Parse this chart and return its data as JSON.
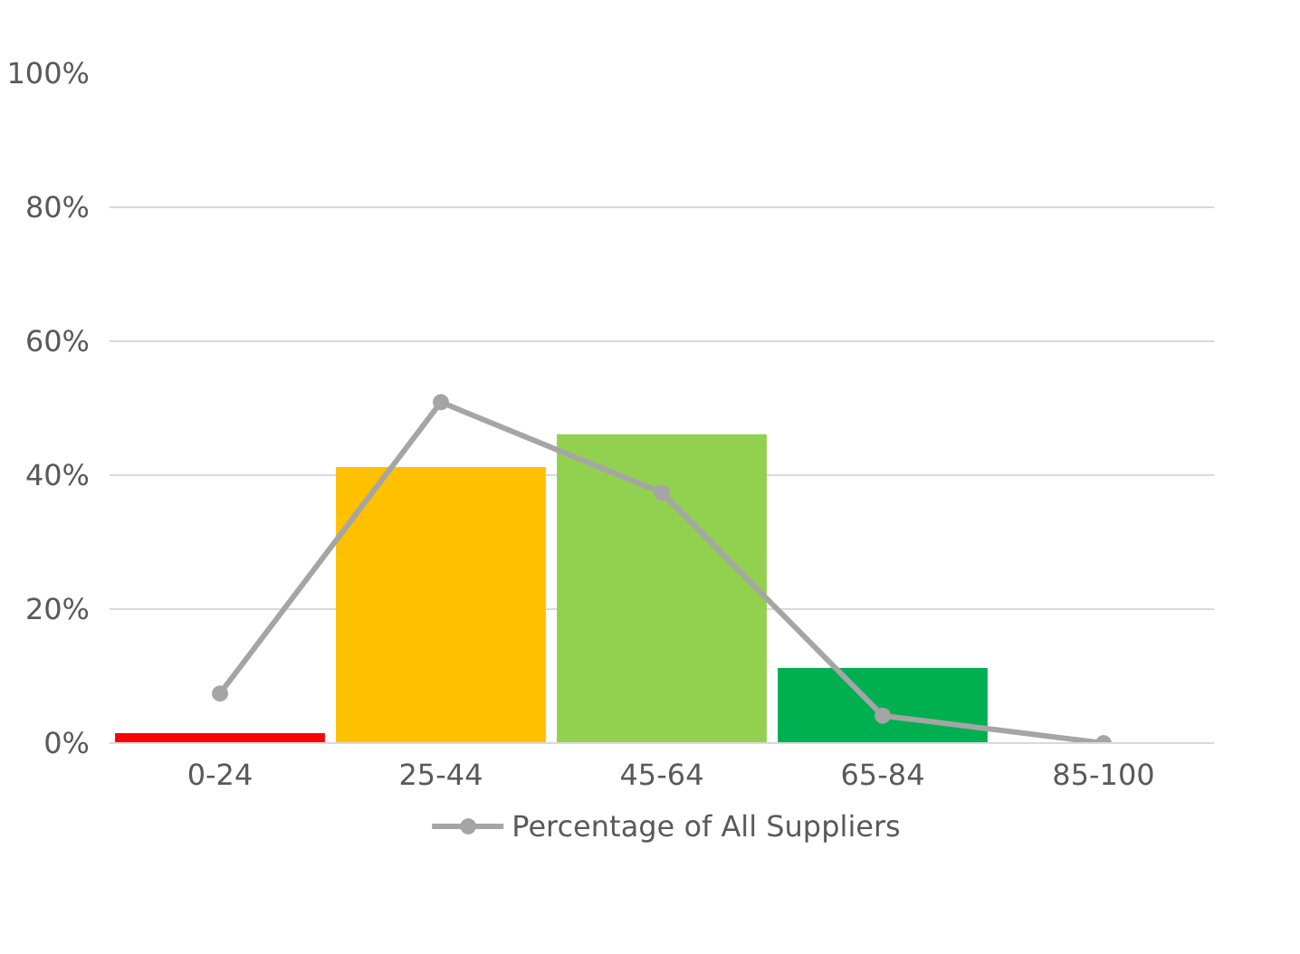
{
  "chart_data": {
    "type": "bar",
    "categories": [
      "0-24",
      "25-44",
      "45-64",
      "65-84",
      "85-100"
    ],
    "series": [
      {
        "colors": [
          "#ff0000",
          "#ffc000",
          "#92d050",
          "#00b050",
          "#00b050"
        ],
        "values": [
          1.5,
          41.2,
          46.1,
          11.2,
          0
        ]
      },
      {
        "type": "line",
        "name": "Percentage of All Suppliers",
        "color": "#a5a5a5",
        "values": [
          7.4,
          50.9,
          37.4,
          4.1,
          0
        ],
        "marker": "circle",
        "line_style": "solid"
      }
    ],
    "ylim": [
      0,
      100
    ],
    "yticks": [
      {
        "value": 0,
        "label": "0%"
      },
      {
        "value": 20,
        "label": "20%"
      },
      {
        "value": 40,
        "label": "40%"
      },
      {
        "value": 60,
        "label": "60%"
      },
      {
        "value": 80,
        "label": "80%"
      },
      {
        "value": 100,
        "label": "100%"
      }
    ],
    "grid": "y",
    "legend": "bottom"
  }
}
